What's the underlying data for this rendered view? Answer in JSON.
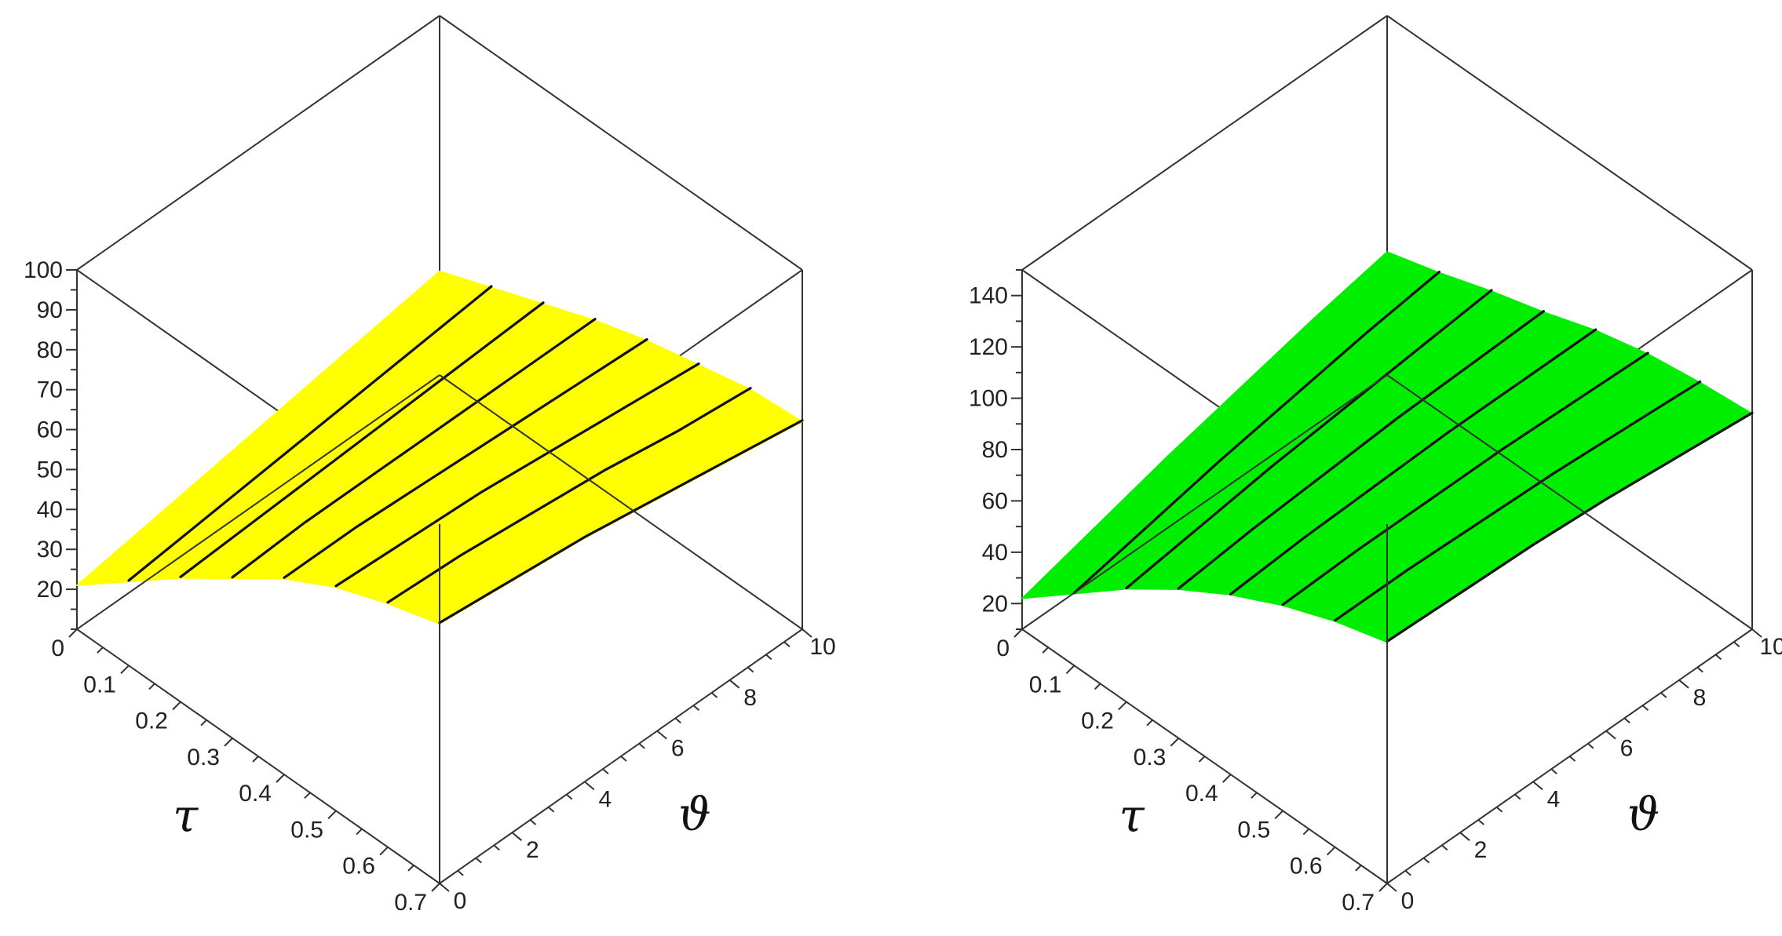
{
  "chart_data": [
    {
      "type": "surface3d",
      "surface_color": "#ffff00",
      "xlabel": "τ",
      "ylabel": "ϑ",
      "zlabel": "",
      "xlim": [
        0,
        0.7
      ],
      "ylim": [
        0,
        10
      ],
      "zlim": [
        10,
        100
      ],
      "x_ticks": [
        "0",
        "0.1",
        "0.2",
        "0.3",
        "0.4",
        "0.5",
        "0.6",
        "0.7"
      ],
      "y_ticks": [
        "0",
        "2",
        "4",
        "6",
        "8",
        "10"
      ],
      "z_ticks": [
        "20",
        "30",
        "40",
        "50",
        "60",
        "70",
        "80",
        "90",
        "100"
      ],
      "z_tick_values": [
        20,
        30,
        40,
        50,
        60,
        70,
        80,
        90,
        100
      ],
      "x_grid": [
        0,
        0.1,
        0.2,
        0.3,
        0.4,
        0.5,
        0.6,
        0.7
      ],
      "y_grid": [
        0,
        2,
        4,
        6,
        8,
        10
      ],
      "z_values": [
        [
          21,
          24,
          27,
          30,
          33,
          36
        ],
        [
          31,
          33,
          35,
          37,
          39,
          41
        ],
        [
          41,
          42,
          43,
          44,
          45,
          46
        ],
        [
          50,
          51,
          51,
          51,
          51,
          51
        ],
        [
          59,
          59,
          58,
          57,
          56,
          55
        ],
        [
          66,
          65,
          64,
          62,
          60,
          58
        ],
        [
          71,
          70,
          68,
          66,
          63,
          61
        ],
        [
          75,
          73,
          71,
          68,
          65,
          62
        ]
      ],
      "grid": false,
      "legend": "none"
    },
    {
      "type": "surface3d",
      "surface_color": "#00ee00",
      "xlabel": "τ",
      "ylabel": "ϑ",
      "zlabel": "",
      "xlim": [
        0,
        0.7
      ],
      "ylim": [
        0,
        10
      ],
      "zlim": [
        10,
        150
      ],
      "x_ticks": [
        "0",
        "0.1",
        "0.2",
        "0.3",
        "0.4",
        "0.5",
        "0.6",
        "0.7"
      ],
      "y_ticks": [
        "0",
        "2",
        "4",
        "6",
        "8",
        "10"
      ],
      "z_ticks": [
        "20",
        "40",
        "60",
        "80",
        "100",
        "120",
        "140"
      ],
      "z_tick_values": [
        20,
        40,
        60,
        80,
        100,
        120,
        140
      ],
      "x_grid": [
        0,
        0.1,
        0.2,
        0.3,
        0.4,
        0.5,
        0.6,
        0.7
      ],
      "y_grid": [
        0,
        2,
        4,
        6,
        8,
        10
      ],
      "z_values": [
        [
          22,
          30,
          38,
          45,
          52,
          58
        ],
        [
          38,
          44,
          50,
          55,
          60,
          64
        ],
        [
          54,
          58,
          62,
          65,
          68,
          71
        ],
        [
          68,
          71,
          73,
          75,
          76,
          77
        ],
        [
          80,
          82,
          83,
          84,
          84,
          84
        ],
        [
          90,
          91,
          91,
          91,
          90,
          89
        ],
        [
          98,
          98,
          97,
          96,
          94,
          92
        ],
        [
          104,
          103,
          102,
          100,
          97,
          94
        ]
      ],
      "grid": false,
      "legend": "none"
    }
  ]
}
